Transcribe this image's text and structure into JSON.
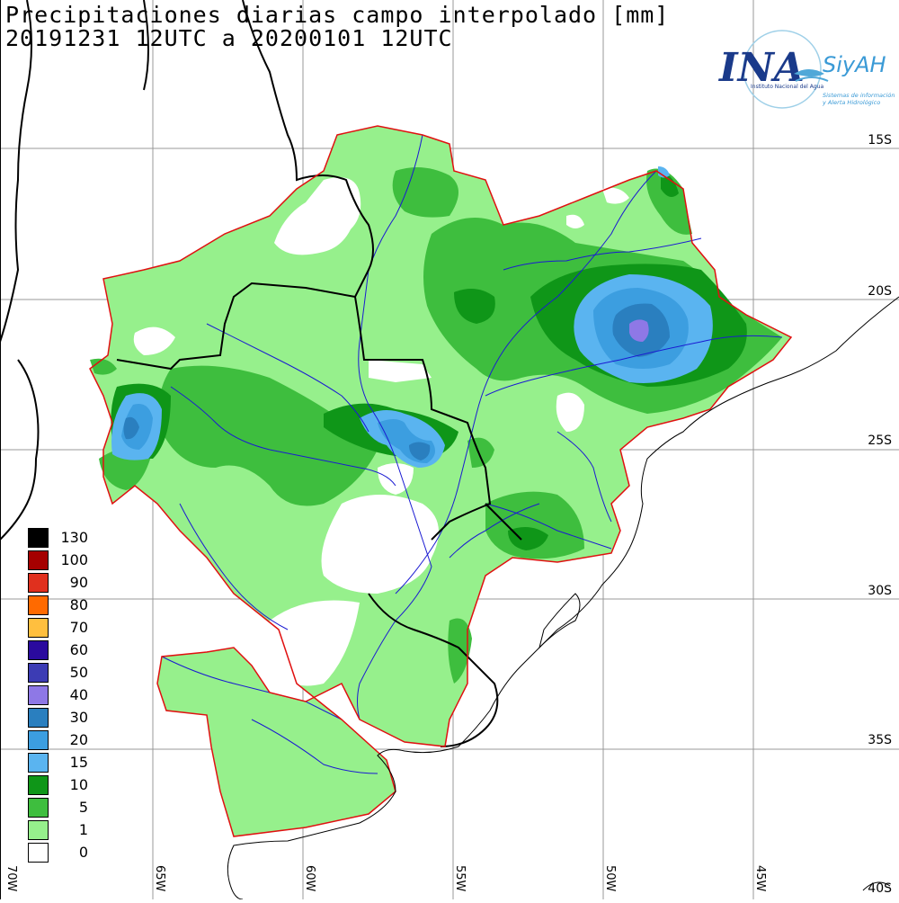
{
  "title": {
    "line1": "Precipitaciones diarias campo interpolado [mm]",
    "line2": "20191231 12UTC a 20200101 12UTC"
  },
  "logo": {
    "main": "INA",
    "sub": "SiyAH",
    "caption1": "Instituto Nacional del Agua",
    "caption2": "Sistemas de información",
    "caption3": "y Alerta Hidrológico"
  },
  "lat_labels": [
    "15S",
    "20S",
    "25S",
    "30S",
    "35S",
    "40S"
  ],
  "lon_labels": [
    "70W",
    "65W",
    "60W",
    "55W",
    "50W",
    "45W"
  ],
  "legend": [
    {
      "label": "130",
      "color": "#000000"
    },
    {
      "label": "100",
      "color": "#a50000"
    },
    {
      "label": "90",
      "color": "#e0301e"
    },
    {
      "label": "80",
      "color": "#ff6a00"
    },
    {
      "label": "70",
      "color": "#ffbf3f"
    },
    {
      "label": "60",
      "color": "#2a0a9e"
    },
    {
      "label": "50",
      "color": "#3c3cb4"
    },
    {
      "label": "40",
      "color": "#8e78e6"
    },
    {
      "label": "30",
      "color": "#2a7fbf"
    },
    {
      "label": "20",
      "color": "#3c9ee0"
    },
    {
      "label": "15",
      "color": "#5ab4f0"
    },
    {
      "label": "10",
      "color": "#0f9618"
    },
    {
      "label": "5",
      "color": "#3ebe3e"
    },
    {
      "label": "1",
      "color": "#96f08c"
    },
    {
      "label": "0",
      "color": "#ffffff"
    }
  ]
}
